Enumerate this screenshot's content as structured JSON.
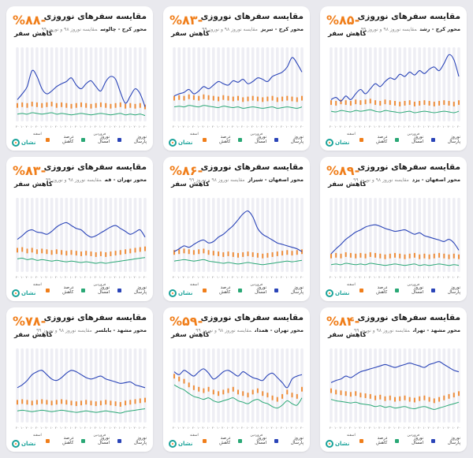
{
  "colors": {
    "blue": "#2a44b8",
    "green": "#2aa876",
    "orange": "#f07e1a",
    "column": "#eeeef4",
    "teal": "#1aa39a"
  },
  "common": {
    "title": "مقایسه سفرهای نوروزی",
    "subtitle_note": "مقایسه نوروز ۹۸ و نوروز ۹۹",
    "reduce_label": "کاهش سفر",
    "legend": {
      "last_year": "نوروز پارسال",
      "this_year": "نوروز امسال",
      "percent": "درصد کاهش"
    },
    "month_left": "اسفند",
    "month_right": "فروردین",
    "logo": "نشان"
  },
  "chart_data": [
    {
      "type": "line",
      "route": "محور کرج - رشت",
      "percent": "%۸۵-",
      "ylim": [
        0,
        100
      ],
      "series": [
        {
          "name": "نوروز پارسال",
          "values": [
            30,
            33,
            28,
            35,
            30,
            38,
            44,
            38,
            45,
            52,
            48,
            55,
            60,
            58,
            65,
            62,
            68,
            64,
            70,
            66,
            72,
            75,
            70,
            80,
            92,
            85,
            62
          ]
        },
        {
          "name": "نوروز امسال",
          "values": [
            14,
            13,
            15,
            14,
            13,
            15,
            14,
            15,
            16,
            14,
            13,
            15,
            14,
            13,
            12,
            13,
            14,
            12,
            13,
            14,
            13,
            12,
            13,
            14,
            13,
            12,
            14
          ]
        }
      ]
    },
    {
      "type": "line",
      "route": "محور کرج - تبریز",
      "percent": "%۸۳-",
      "ylim": [
        0,
        100
      ],
      "series": [
        {
          "name": "نوروز پارسال",
          "values": [
            35,
            38,
            40,
            44,
            38,
            42,
            48,
            45,
            50,
            55,
            52,
            50,
            56,
            54,
            58,
            52,
            55,
            60,
            58,
            55,
            62,
            65,
            68,
            75,
            88,
            80,
            68
          ]
        },
        {
          "name": "نوروز امسال",
          "values": [
            20,
            21,
            20,
            22,
            21,
            20,
            22,
            21,
            20,
            19,
            21,
            20,
            19,
            20,
            18,
            19,
            20,
            19,
            18,
            19,
            20,
            18,
            19,
            20,
            19,
            18,
            20
          ]
        }
      ]
    },
    {
      "type": "line",
      "route": "محور کرج - چالوس",
      "percent": "%۸۸-",
      "ylim": [
        0,
        100
      ],
      "series": [
        {
          "name": "نوروز پارسال",
          "values": [
            30,
            38,
            48,
            70,
            62,
            45,
            38,
            42,
            48,
            52,
            55,
            60,
            50,
            45,
            52,
            56,
            48,
            42,
            55,
            62,
            58,
            40,
            25,
            35,
            45,
            38,
            20
          ]
        },
        {
          "name": "نوروز امسال",
          "values": [
            10,
            11,
            10,
            12,
            11,
            10,
            11,
            12,
            10,
            11,
            10,
            9,
            10,
            11,
            10,
            9,
            10,
            11,
            10,
            9,
            10,
            11,
            9,
            10,
            9,
            10,
            8
          ]
        }
      ]
    },
    {
      "type": "line",
      "route": "محور اصفهان - یزد",
      "percent": "%۸۹-",
      "ylim": [
        0,
        100
      ],
      "series": [
        {
          "name": "نوروز پارسال",
          "values": [
            25,
            32,
            38,
            45,
            50,
            55,
            58,
            62,
            64,
            65,
            63,
            60,
            58,
            56,
            57,
            58,
            55,
            52,
            54,
            50,
            48,
            46,
            44,
            42,
            45,
            40,
            30
          ]
        },
        {
          "name": "نوروز امسال",
          "values": [
            10,
            11,
            10,
            12,
            11,
            10,
            11,
            10,
            12,
            11,
            10,
            9,
            10,
            11,
            10,
            9,
            10,
            11,
            9,
            10,
            9,
            10,
            11,
            10,
            9,
            10,
            9
          ]
        }
      ]
    },
    {
      "type": "line",
      "route": "محور اصفهان - شیراز",
      "percent": "%۸۶-",
      "ylim": [
        0,
        100
      ],
      "series": [
        {
          "name": "نوروز پارسال",
          "values": [
            28,
            32,
            36,
            34,
            38,
            42,
            44,
            40,
            42,
            48,
            52,
            58,
            64,
            72,
            80,
            84,
            76,
            60,
            52,
            48,
            44,
            40,
            38,
            36,
            34,
            32,
            28
          ]
        },
        {
          "name": "نوروز امسال",
          "values": [
            15,
            16,
            17,
            16,
            15,
            16,
            17,
            15,
            14,
            13,
            12,
            13,
            12,
            11,
            12,
            13,
            12,
            11,
            10,
            11,
            12,
            13,
            14,
            15,
            14,
            15,
            16
          ]
        }
      ]
    },
    {
      "type": "line",
      "route": "محور تهران - قم",
      "percent": "%۸۳-",
      "ylim": [
        0,
        100
      ],
      "series": [
        {
          "name": "نوروز پارسال",
          "values": [
            45,
            50,
            56,
            58,
            55,
            54,
            52,
            56,
            62,
            66,
            68,
            64,
            60,
            58,
            52,
            48,
            50,
            54,
            58,
            62,
            64,
            60,
            56,
            52,
            55,
            58,
            48
          ]
        },
        {
          "name": "نوروز امسال",
          "values": [
            18,
            19,
            17,
            18,
            16,
            17,
            16,
            15,
            16,
            15,
            14,
            15,
            14,
            13,
            14,
            13,
            12,
            13,
            12,
            13,
            14,
            15,
            16,
            17,
            18,
            19,
            20
          ]
        }
      ]
    },
    {
      "type": "line",
      "route": "محور مشهد - تهران",
      "percent": "%۸۴-",
      "ylim": [
        0,
        100
      ],
      "series": [
        {
          "name": "نوروز پارسال",
          "values": [
            55,
            58,
            60,
            64,
            62,
            66,
            70,
            72,
            74,
            76,
            78,
            80,
            78,
            76,
            78,
            80,
            82,
            80,
            78,
            76,
            80,
            82,
            84,
            80,
            76,
            72,
            70
          ]
        },
        {
          "name": "نوروز امسال",
          "values": [
            32,
            30,
            29,
            28,
            27,
            28,
            26,
            25,
            24,
            22,
            23,
            21,
            22,
            20,
            21,
            22,
            20,
            19,
            21,
            22,
            20,
            18,
            20,
            22,
            24,
            26,
            28
          ]
        }
      ]
    },
    {
      "type": "line",
      "route": "محور تهران - همدان",
      "percent": "%۵۹-",
      "ylim": [
        0,
        100
      ],
      "series": [
        {
          "name": "نوروز پارسال",
          "values": [
            70,
            66,
            72,
            68,
            64,
            70,
            74,
            68,
            60,
            64,
            70,
            72,
            68,
            64,
            70,
            66,
            62,
            60,
            58,
            65,
            68,
            62,
            55,
            48,
            60,
            64,
            66
          ]
        },
        {
          "name": "نوروز امسال",
          "values": [
            52,
            48,
            45,
            40,
            36,
            34,
            32,
            34,
            30,
            28,
            30,
            32,
            34,
            30,
            28,
            26,
            30,
            32,
            28,
            26,
            22,
            20,
            24,
            30,
            26,
            24,
            34
          ]
        }
      ]
    },
    {
      "type": "line",
      "route": "محور مشهد - بابلسر",
      "percent": "%۷۸-",
      "ylim": [
        0,
        100
      ],
      "series": [
        {
          "name": "نوروز پارسال",
          "values": [
            48,
            52,
            58,
            66,
            70,
            72,
            66,
            60,
            58,
            62,
            68,
            72,
            70,
            66,
            62,
            60,
            62,
            64,
            60,
            58,
            56,
            54,
            55,
            56,
            52,
            50,
            48
          ]
        },
        {
          "name": "نوروز امسال",
          "values": [
            16,
            17,
            16,
            15,
            16,
            17,
            16,
            15,
            16,
            17,
            16,
            15,
            14,
            15,
            16,
            15,
            14,
            15,
            16,
            15,
            14,
            13,
            15,
            16,
            17,
            18,
            19
          ]
        }
      ]
    }
  ]
}
